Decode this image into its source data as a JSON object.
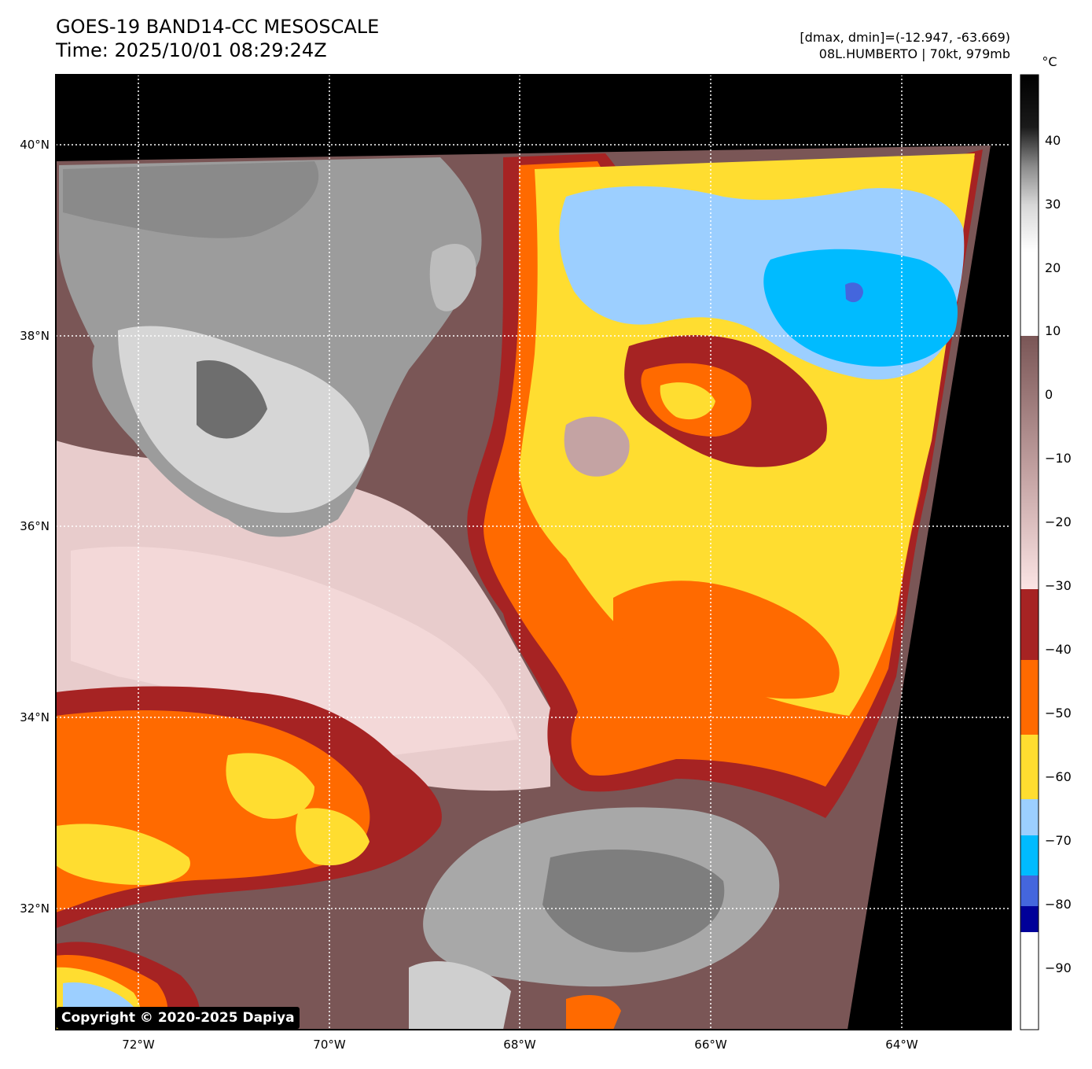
{
  "title": {
    "line1": "GOES-19 BAND14-CC MESOSCALE",
    "line2": "Time: 2025/10/01 08:29:24Z"
  },
  "info": {
    "range": "[dmax, dmin]=(-12.947, -63.669)",
    "storm": "08L.HUMBERTO | 70kt, 979mb"
  },
  "map": {
    "lat_labels": [
      "40°N",
      "38°N",
      "36°N",
      "34°N",
      "32°N"
    ],
    "lon_labels": [
      "72°W",
      "70°W",
      "68°W",
      "66°W",
      "64°W"
    ]
  },
  "colorbar": {
    "unit": "°C",
    "labels": [
      "40",
      "30",
      "20",
      "10",
      "0",
      "−10",
      "−20",
      "−30",
      "−40",
      "−50",
      "−60",
      "−70",
      "−80",
      "−90"
    ],
    "colors": {
      "hot": "#000000",
      "warm_gray": "#9a9a9a",
      "light": "#ffffff",
      "brown": "#7a5656",
      "pink": "#f3d8d8",
      "dark_red": "#a62323",
      "orange": "#ff6a00",
      "yellow": "#ffdd30",
      "light_blue": "#9ccfff",
      "cyan": "#00bbff",
      "royal_blue": "#4466dd",
      "navy": "#000099",
      "white": "#ffffff"
    }
  },
  "copyright": "Copyright © 2020-2025 Dapiya"
}
